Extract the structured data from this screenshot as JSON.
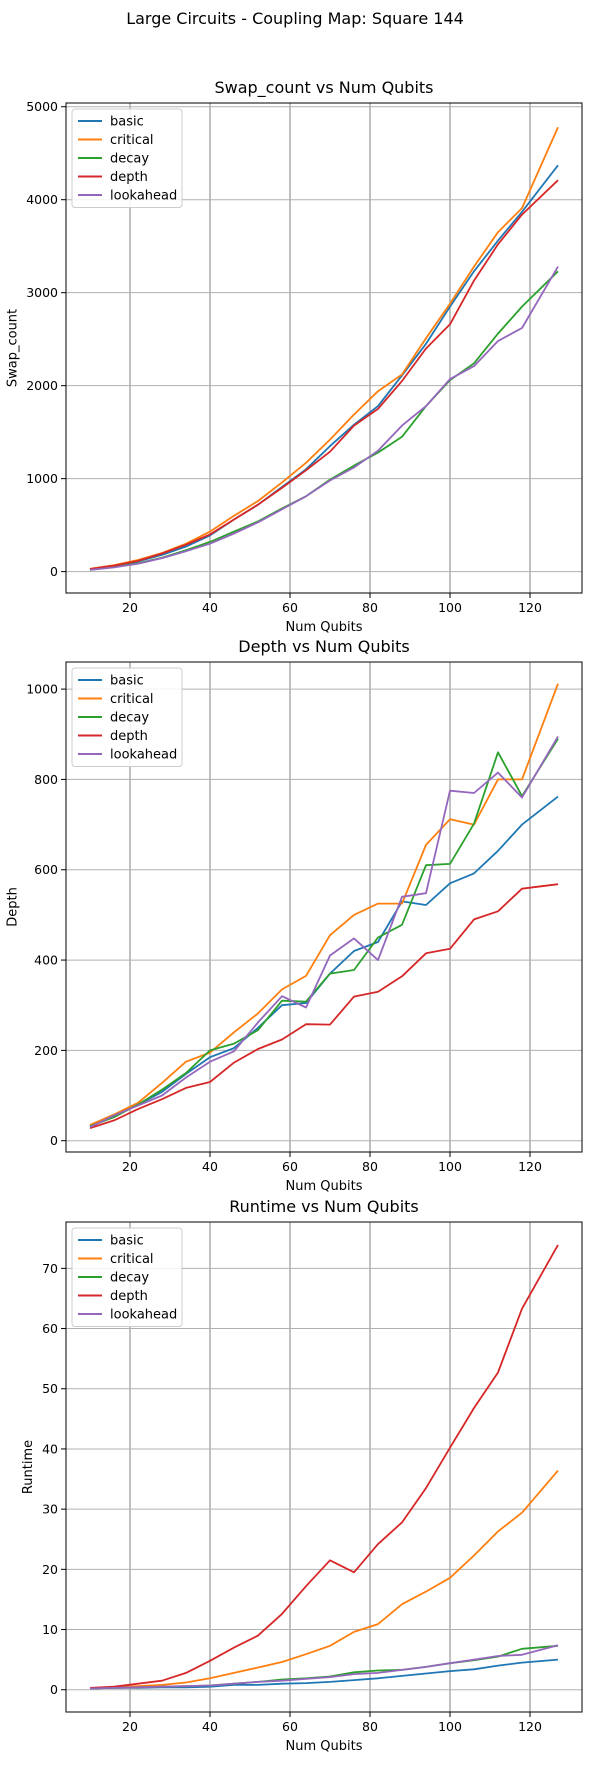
{
  "figure": {
    "suptitle": "Large Circuits - Coupling Map: Square 144"
  },
  "colors": {
    "basic": "#1f77b4",
    "critical": "#ff7f0e",
    "decay": "#2ca02c",
    "depth": "#d62728",
    "lookahead": "#9467bd"
  },
  "chart_data": [
    {
      "type": "line",
      "title": "Swap_count vs Num Qubits",
      "xlabel": "Num Qubits",
      "ylabel": "Swap_count",
      "xlim": [
        4,
        133
      ],
      "ylim": [
        -230,
        5040
      ],
      "xticks": [
        20,
        40,
        60,
        80,
        100,
        120
      ],
      "yticks": [
        0,
        1000,
        2000,
        3000,
        4000,
        5000
      ],
      "grid": true,
      "legend": "upper left",
      "x": [
        10,
        16,
        22,
        28,
        34,
        40,
        46,
        52,
        58,
        64,
        70,
        76,
        82,
        88,
        94,
        100,
        106,
        112,
        118,
        127
      ],
      "series": [
        {
          "name": "basic",
          "values": [
            25,
            60,
            110,
            180,
            270,
            390,
            560,
            720,
            910,
            1100,
            1350,
            1580,
            1780,
            2110,
            2450,
            2850,
            3230,
            3560,
            3870,
            4370
          ]
        },
        {
          "name": "critical",
          "values": [
            30,
            70,
            125,
            200,
            300,
            430,
            600,
            760,
            960,
            1170,
            1420,
            1690,
            1940,
            2120,
            2510,
            2880,
            3280,
            3650,
            3910,
            4780
          ]
        },
        {
          "name": "decay",
          "values": [
            20,
            50,
            90,
            150,
            230,
            320,
            430,
            540,
            680,
            810,
            990,
            1140,
            1280,
            1450,
            1780,
            2060,
            2240,
            2560,
            2850,
            3230
          ]
        },
        {
          "name": "depth",
          "values": [
            28,
            65,
            115,
            195,
            290,
            400,
            560,
            720,
            900,
            1090,
            1290,
            1570,
            1750,
            2050,
            2400,
            2660,
            3130,
            3520,
            3840,
            4210
          ]
        },
        {
          "name": "lookahead",
          "values": [
            18,
            45,
            85,
            145,
            220,
            300,
            410,
            530,
            670,
            810,
            980,
            1120,
            1300,
            1570,
            1780,
            2070,
            2210,
            2480,
            2620,
            3280
          ]
        }
      ]
    },
    {
      "type": "line",
      "title": "Depth vs Num Qubits",
      "xlabel": "Num Qubits",
      "ylabel": "Depth",
      "xlim": [
        4,
        133
      ],
      "ylim": [
        -25,
        1060
      ],
      "xticks": [
        20,
        40,
        60,
        80,
        100,
        120
      ],
      "yticks": [
        0,
        200,
        400,
        600,
        800,
        1000
      ],
      "grid": true,
      "legend": "upper left",
      "x": [
        10,
        16,
        22,
        28,
        34,
        40,
        46,
        52,
        58,
        64,
        70,
        76,
        82,
        88,
        94,
        100,
        106,
        112,
        118,
        127
      ],
      "series": [
        {
          "name": "basic",
          "values": [
            33,
            55,
            80,
            108,
            148,
            185,
            205,
            250,
            300,
            305,
            370,
            420,
            440,
            530,
            522,
            570,
            592,
            642,
            700,
            762
          ]
        },
        {
          "name": "critical",
          "values": [
            35,
            58,
            84,
            128,
            175,
            195,
            240,
            282,
            335,
            365,
            455,
            500,
            525,
            525,
            655,
            712,
            700,
            800,
            800,
            1012
          ]
        },
        {
          "name": "decay",
          "values": [
            32,
            52,
            80,
            113,
            150,
            200,
            215,
            245,
            310,
            308,
            370,
            378,
            450,
            478,
            610,
            613,
            702,
            860,
            763,
            890
          ]
        },
        {
          "name": "depth",
          "values": [
            28,
            45,
            70,
            92,
            117,
            130,
            173,
            203,
            224,
            258,
            257,
            319,
            330,
            364,
            415,
            425,
            490,
            508,
            558,
            568
          ]
        },
        {
          "name": "lookahead",
          "values": [
            30,
            56,
            78,
            100,
            140,
            175,
            198,
            262,
            320,
            295,
            410,
            448,
            400,
            540,
            548,
            775,
            770,
            815,
            760,
            895
          ]
        }
      ]
    },
    {
      "type": "line",
      "title": "Runtime vs Num Qubits",
      "xlabel": "Num Qubits",
      "ylabel": "Runtime",
      "xlim": [
        4,
        133
      ],
      "ylim": [
        -3.7,
        77.7
      ],
      "xticks": [
        20,
        40,
        60,
        80,
        100,
        120
      ],
      "yticks": [
        0,
        10,
        20,
        30,
        40,
        50,
        60,
        70
      ],
      "grid": true,
      "legend": "upper left",
      "x": [
        10,
        16,
        22,
        28,
        34,
        40,
        46,
        52,
        58,
        64,
        70,
        76,
        82,
        88,
        94,
        100,
        106,
        112,
        118,
        127
      ],
      "series": [
        {
          "name": "basic",
          "values": [
            0.2,
            0.3,
            0.3,
            0.4,
            0.4,
            0.5,
            0.8,
            0.8,
            1.0,
            1.1,
            1.3,
            1.6,
            1.9,
            2.3,
            2.7,
            3.1,
            3.4,
            4.0,
            4.5,
            5.0
          ]
        },
        {
          "name": "critical",
          "values": [
            0.2,
            0.4,
            0.6,
            0.8,
            1.2,
            1.9,
            2.8,
            3.7,
            4.6,
            5.9,
            7.3,
            9.6,
            10.9,
            14.2,
            16.3,
            18.6,
            22.3,
            26.3,
            29.4,
            36.4
          ]
        },
        {
          "name": "decay",
          "values": [
            0.2,
            0.3,
            0.4,
            0.5,
            0.6,
            0.7,
            1.0,
            1.3,
            1.7,
            1.9,
            2.2,
            2.9,
            3.2,
            3.3,
            3.8,
            4.4,
            4.9,
            5.5,
            6.8,
            7.3
          ]
        },
        {
          "name": "depth",
          "values": [
            0.3,
            0.5,
            1.0,
            1.5,
            2.8,
            4.8,
            7.0,
            9.0,
            12.6,
            17.2,
            21.5,
            19.5,
            24.2,
            27.8,
            33.5,
            40.2,
            46.8,
            52.7,
            63.3,
            73.9
          ]
        },
        {
          "name": "lookahead",
          "values": [
            0.2,
            0.3,
            0.4,
            0.5,
            0.6,
            0.7,
            1.0,
            1.3,
            1.5,
            1.8,
            2.1,
            2.6,
            2.8,
            3.3,
            3.8,
            4.4,
            5.0,
            5.6,
            5.8,
            7.4
          ]
        }
      ]
    }
  ]
}
